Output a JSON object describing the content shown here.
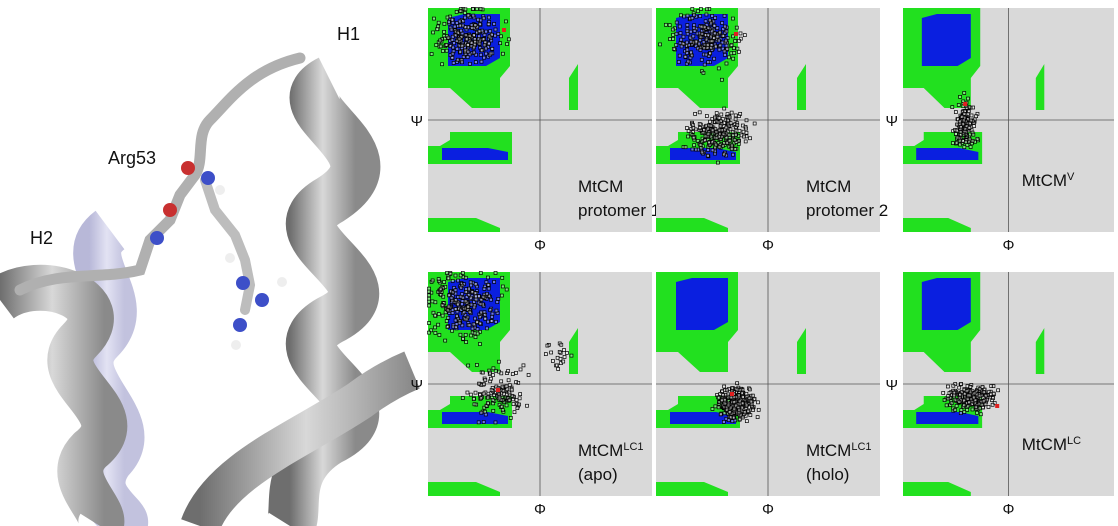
{
  "figure": {
    "labels": {
      "h1": "H1",
      "arg53": "Arg53",
      "h2": "H2"
    },
    "x_axis": "Φ",
    "y_axis": "Ψ",
    "panels": [
      {
        "name": "MtCM",
        "line2": "protomer 1"
      },
      {
        "name": "MtCM",
        "line2": "protomer 2"
      },
      {
        "name": "MtCM",
        "sup": "V"
      },
      {
        "name": "MtCM",
        "sup": "LC1",
        "line2": "(apo)"
      },
      {
        "name": "MtCM",
        "sup": "LC1",
        "line2": "(holo)"
      },
      {
        "name": "MtCM",
        "sup": "LC"
      }
    ]
  }
}
